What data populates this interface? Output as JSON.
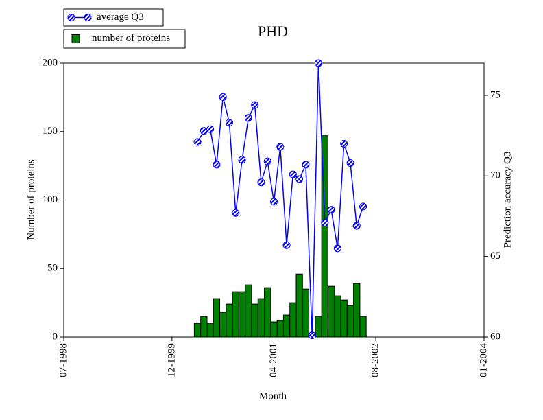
{
  "chart_data": {
    "type": "bar-line",
    "title": "PHD",
    "x_label": "Month",
    "y_label": "Number of proteins",
    "y2_label": "Prediction accuracy Q3",
    "x": [
      "04-2000",
      "05-2000",
      "06-2000",
      "07-2000",
      "08-2000",
      "09-2000",
      "10-2000",
      "11-2000",
      "12-2000",
      "01-2001",
      "02-2001",
      "03-2001",
      "04-2001",
      "05-2001",
      "06-2001",
      "07-2001",
      "08-2001",
      "09-2001",
      "10-2001",
      "11-2001",
      "12-2001",
      "01-2002",
      "02-2002",
      "03-2002",
      "04-2002",
      "05-2002",
      "06-2002"
    ],
    "xlim": [
      "07-1998",
      "01-2004"
    ],
    "xticks": [
      "07-1998",
      "12-1999",
      "04-2001",
      "08-2002",
      "01-2004"
    ],
    "ylim": [
      0,
      200
    ],
    "yticks": [
      0,
      50,
      100,
      150,
      200
    ],
    "y2lim": [
      60,
      77
    ],
    "y2ticks": [
      60,
      65,
      70,
      75
    ],
    "series": [
      {
        "name": "average Q3",
        "type": "line",
        "axis": "y2",
        "color": "#0000ff",
        "values": [
          72.1,
          72.8,
          72.9,
          70.7,
          74.9,
          73.3,
          67.7,
          71.0,
          73.6,
          74.4,
          69.6,
          70.9,
          68.4,
          71.8,
          65.7,
          70.1,
          69.8,
          70.7,
          60.1,
          77.0,
          67.1,
          67.9,
          65.5,
          72.0,
          70.8,
          66.9,
          68.1
        ]
      },
      {
        "name": "number of proteins",
        "type": "bar",
        "axis": "y",
        "color": "#008000",
        "values": [
          10,
          15,
          10,
          28,
          18,
          24,
          33,
          33,
          38,
          24,
          28,
          36,
          11,
          12,
          16,
          25,
          46,
          35,
          2,
          15,
          147,
          37,
          30,
          27,
          23,
          39,
          15
        ]
      }
    ]
  }
}
